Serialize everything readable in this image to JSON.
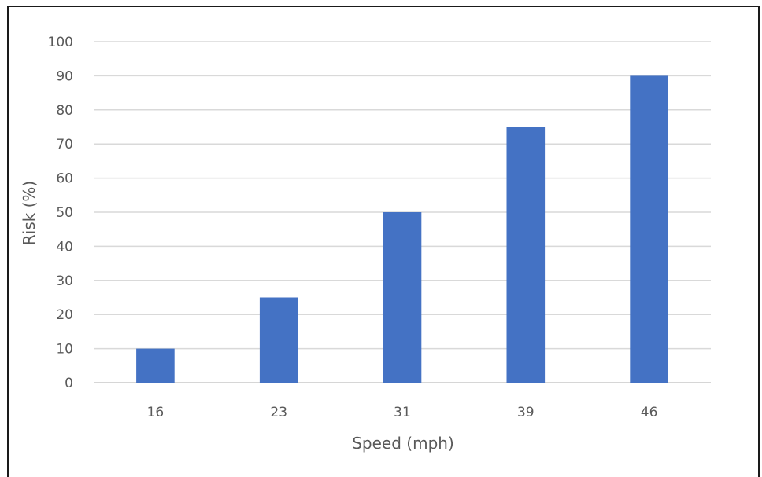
{
  "chart_data": {
    "type": "bar",
    "title": "",
    "xlabel": "Speed (mph)",
    "ylabel": "Risk (%)",
    "categories": [
      "16",
      "23",
      "31",
      "39",
      "46"
    ],
    "values": [
      10,
      25,
      50,
      75,
      90
    ],
    "ylim": [
      0,
      100
    ],
    "yticks": [
      0,
      10,
      20,
      30,
      40,
      50,
      60,
      70,
      80,
      90,
      100
    ],
    "grid": true,
    "legend": "none",
    "bar_color": "#4472c4",
    "grid_color": "#d9d9d9",
    "text_color": "#595959"
  }
}
